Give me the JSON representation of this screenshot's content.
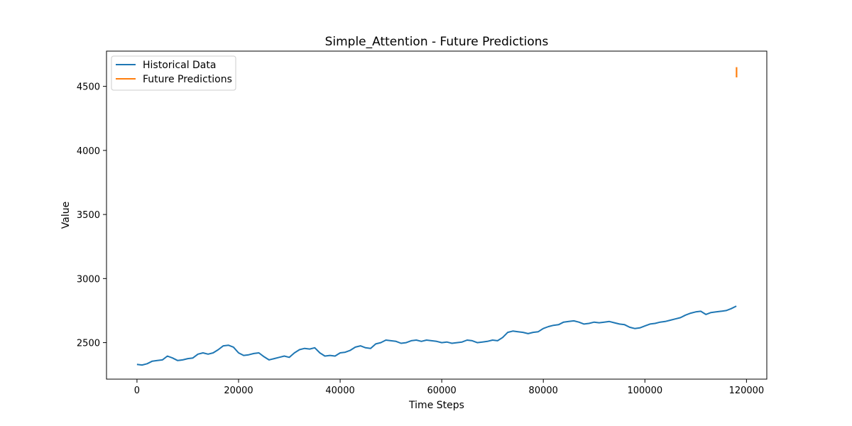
{
  "chart_data": {
    "type": "line",
    "title": "Simple_Attention - Future Predictions",
    "xlabel": "Time Steps",
    "ylabel": "Value",
    "xlim": [
      -6000,
      124000
    ],
    "ylim": [
      2215,
      4775
    ],
    "xticks": [
      0,
      20000,
      40000,
      60000,
      80000,
      100000,
      120000
    ],
    "yticks": [
      2500,
      3000,
      3500,
      4000,
      4500
    ],
    "grid": false,
    "legend_position": "top-left",
    "series": [
      {
        "name": "Historical Data",
        "color": "#1f77b4",
        "x": [
          0,
          1000,
          2000,
          3000,
          4000,
          5000,
          6000,
          7000,
          8000,
          9000,
          10000,
          11000,
          12000,
          13000,
          14000,
          15000,
          16000,
          17000,
          18000,
          19000,
          20000,
          21000,
          22000,
          23000,
          24000,
          25000,
          26000,
          27000,
          28000,
          29000,
          30000,
          31000,
          32000,
          33000,
          34000,
          35000,
          36000,
          37000,
          38000,
          39000,
          40000,
          41000,
          42000,
          43000,
          44000,
          45000,
          46000,
          47000,
          48000,
          49000,
          50000,
          51000,
          52000,
          53000,
          54000,
          55000,
          56000,
          57000,
          58000,
          59000,
          60000,
          61000,
          62000,
          63000,
          64000,
          65000,
          66000,
          67000,
          68000,
          69000,
          70000,
          71000,
          72000,
          73000,
          74000,
          75000,
          76000,
          77000,
          78000,
          79000,
          80000,
          81000,
          82000,
          83000,
          84000,
          85000,
          86000,
          87000,
          88000,
          89000,
          90000,
          91000,
          92000,
          93000,
          94000,
          95000,
          96000,
          97000,
          98000,
          99000,
          100000,
          101000,
          102000,
          103000,
          104000,
          105000,
          106000,
          107000,
          108000,
          109000,
          110000,
          111000,
          112000,
          113000,
          114000,
          115000,
          116000,
          117000,
          118000
        ],
        "y": [
          2330,
          2325,
          2335,
          2355,
          2360,
          2365,
          2395,
          2380,
          2360,
          2365,
          2375,
          2380,
          2410,
          2420,
          2410,
          2420,
          2445,
          2475,
          2480,
          2465,
          2420,
          2400,
          2405,
          2415,
          2420,
          2390,
          2365,
          2375,
          2385,
          2395,
          2385,
          2420,
          2445,
          2455,
          2450,
          2460,
          2420,
          2395,
          2400,
          2395,
          2420,
          2425,
          2440,
          2465,
          2475,
          2460,
          2455,
          2490,
          2500,
          2520,
          2515,
          2510,
          2495,
          2500,
          2515,
          2520,
          2510,
          2520,
          2515,
          2510,
          2500,
          2505,
          2495,
          2500,
          2505,
          2520,
          2515,
          2500,
          2505,
          2510,
          2520,
          2515,
          2540,
          2580,
          2590,
          2585,
          2580,
          2570,
          2580,
          2585,
          2610,
          2625,
          2635,
          2640,
          2660,
          2665,
          2670,
          2660,
          2645,
          2650,
          2660,
          2655,
          2660,
          2665,
          2655,
          2645,
          2640,
          2620,
          2610,
          2615,
          2630,
          2645,
          2650,
          2660,
          2665,
          2675,
          2685,
          2695,
          2715,
          2730,
          2740,
          2745,
          2720,
          2735,
          2740,
          2745,
          2750,
          2765,
          2785
        ]
      },
      {
        "name": "Future Predictions",
        "color": "#ff7f0e",
        "x": [
          118050,
          118050,
          118050,
          118050,
          118050
        ],
        "y": [
          4650,
          4625,
          4600,
          4585,
          4570
        ]
      }
    ]
  }
}
